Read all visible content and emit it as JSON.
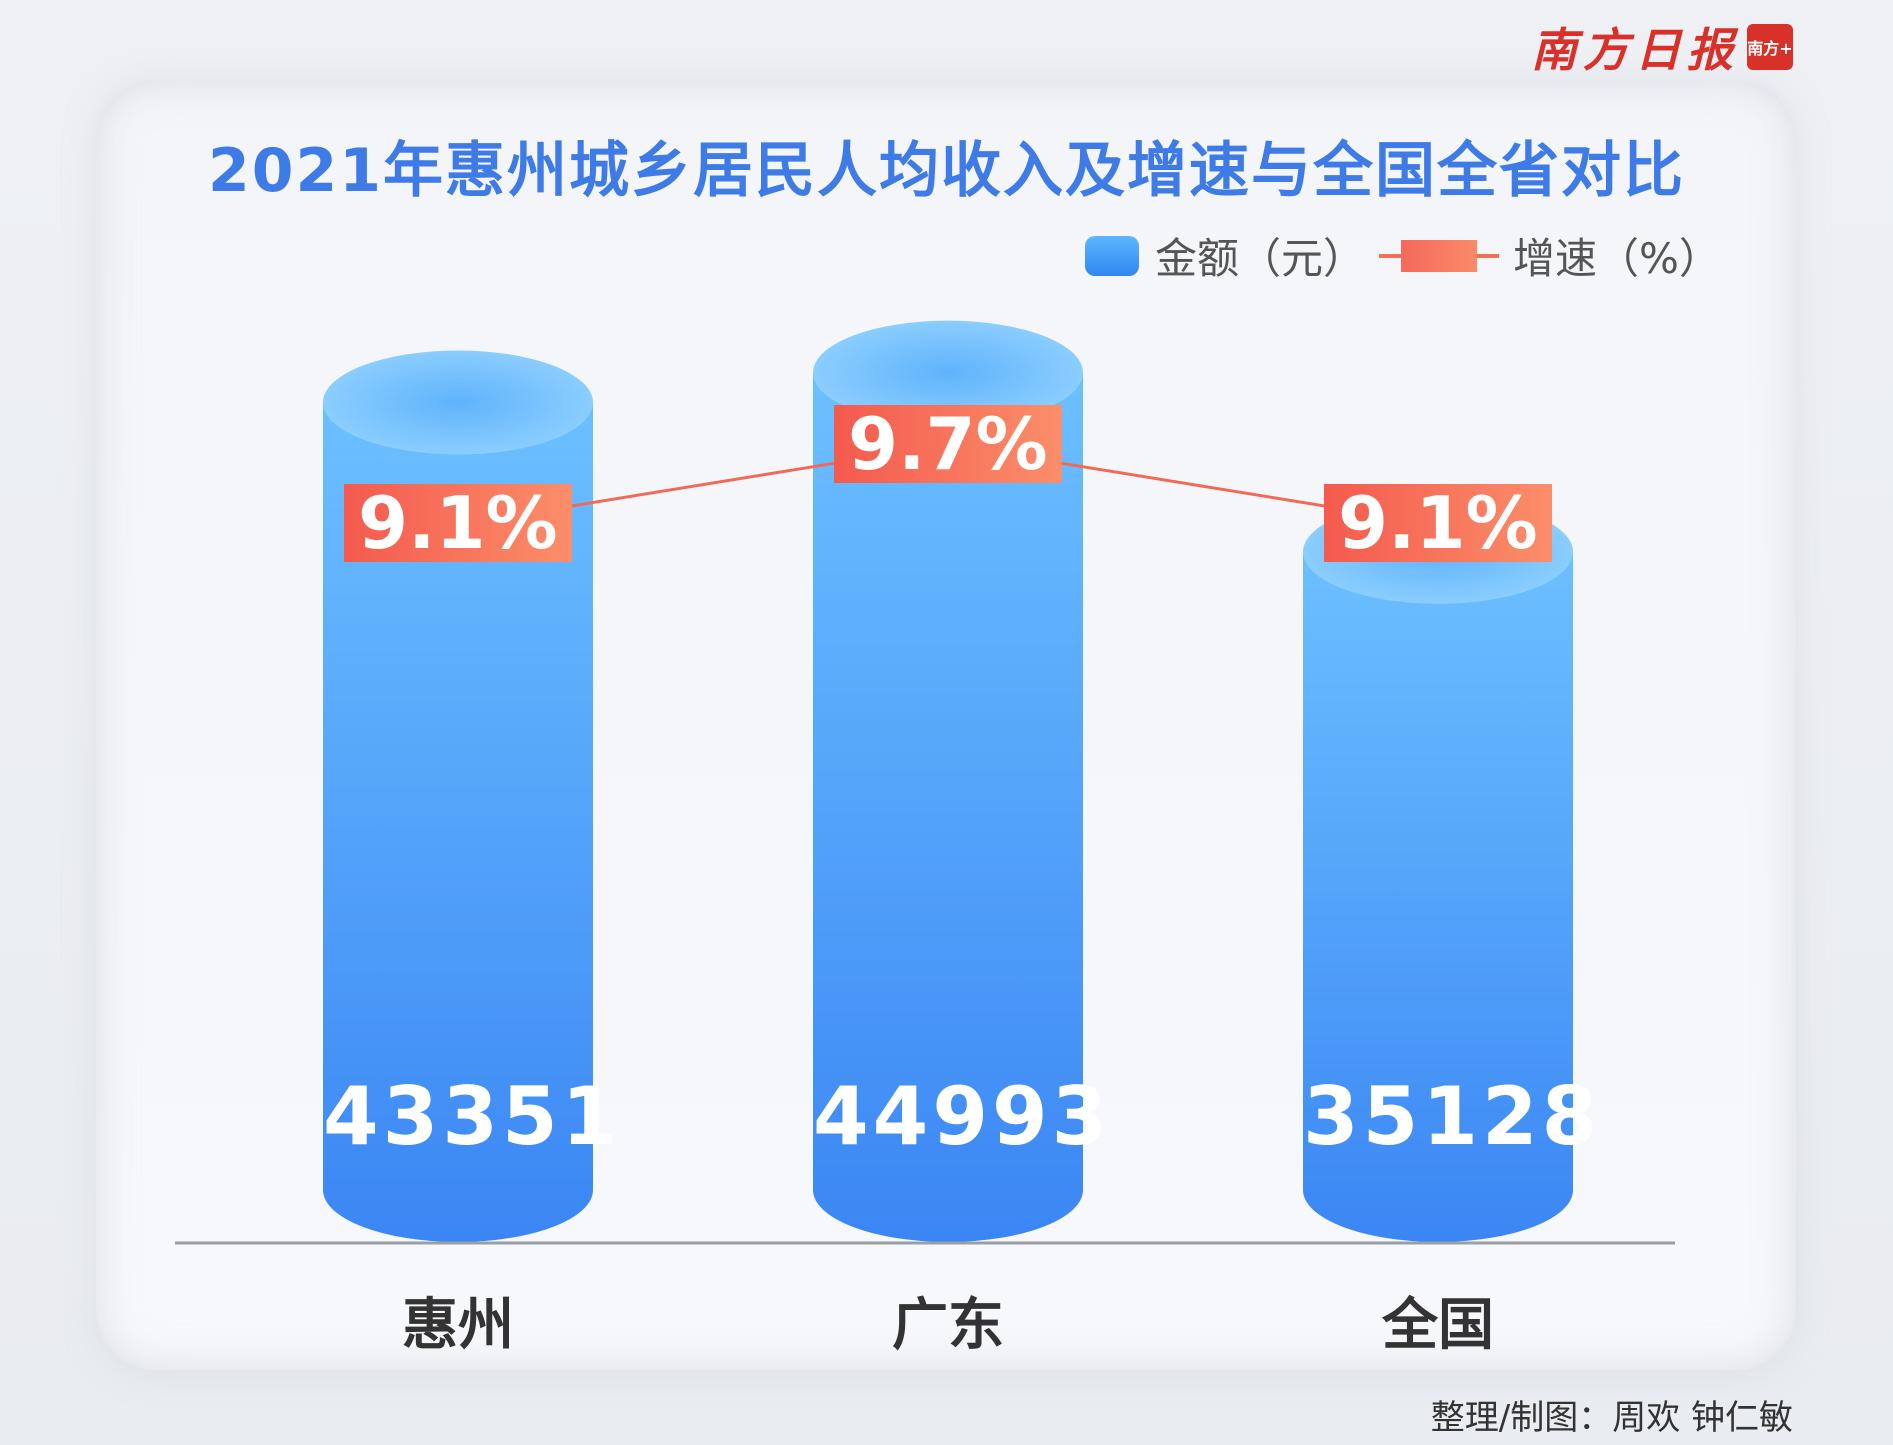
{
  "logo": {
    "text": "南方日报",
    "badge": "南方+"
  },
  "chart_data": {
    "type": "bar",
    "title": "2021年惠州城乡居民人均收入及增速与全国全省对比",
    "categories": [
      "惠州",
      "广东",
      "全国"
    ],
    "series": [
      {
        "name": "金额（元）",
        "type": "bar",
        "values": [
          43351,
          44993,
          35128
        ],
        "color": "#3f8ef5"
      },
      {
        "name": "增速（%）",
        "type": "line",
        "values": [
          9.1,
          9.7,
          9.1
        ],
        "color": "#f26a55"
      }
    ],
    "bar_labels": [
      "43351",
      "44993",
      "35128"
    ],
    "rate_labels": [
      "9.1%",
      "9.7%",
      "9.1%"
    ],
    "legend_position": "top-right",
    "grid": false
  },
  "credit": "整理/制图：周欢 钟仁敏"
}
